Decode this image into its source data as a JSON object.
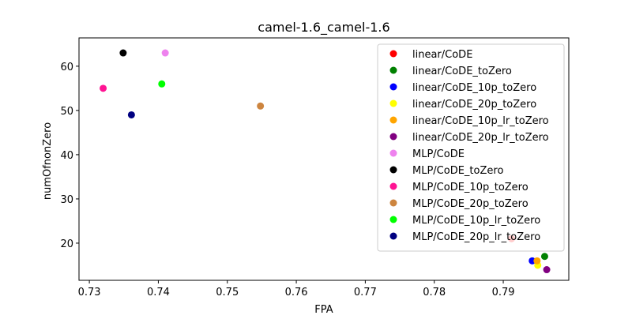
{
  "chart_data": {
    "type": "scatter",
    "title": "camel-1.6_camel-1.6",
    "xlabel": "FPA",
    "ylabel": "numOfnonZero",
    "xlim": [
      0.7285,
      0.7995
    ],
    "ylim": [
      11.6,
      66.4
    ],
    "xticks": [
      0.73,
      0.74,
      0.75,
      0.76,
      0.77,
      0.78,
      0.79
    ],
    "xtick_labels": [
      "0.73",
      "0.74",
      "0.75",
      "0.76",
      "0.77",
      "0.78",
      "0.79"
    ],
    "yticks": [
      20,
      30,
      40,
      50,
      60
    ],
    "ytick_labels": [
      "20",
      "30",
      "40",
      "50",
      "60"
    ],
    "legend_position": "upper-right",
    "grid": false,
    "series": [
      {
        "name": "linear/CoDE",
        "color": "#ff0000",
        "points": [
          {
            "x": 0.7912,
            "y": 21
          }
        ]
      },
      {
        "name": "linear/CoDE_toZero",
        "color": "#008000",
        "points": [
          {
            "x": 0.796,
            "y": 17
          }
        ]
      },
      {
        "name": "linear/CoDE_10p_toZero",
        "color": "#0000ff",
        "points": [
          {
            "x": 0.7942,
            "y": 16
          }
        ]
      },
      {
        "name": "linear/CoDE_20p_toZero",
        "color": "#ffff00",
        "points": [
          {
            "x": 0.795,
            "y": 15
          }
        ]
      },
      {
        "name": "linear/CoDE_10p_lr_toZero",
        "color": "#ffa500",
        "points": [
          {
            "x": 0.7949,
            "y": 16
          }
        ]
      },
      {
        "name": "linear/CoDE_20p_lr_toZero",
        "color": "#800080",
        "points": [
          {
            "x": 0.7963,
            "y": 14
          }
        ]
      },
      {
        "name": "MLP/CoDE",
        "color": "#ee82ee",
        "points": [
          {
            "x": 0.741,
            "y": 63
          }
        ]
      },
      {
        "name": "MLP/CoDE_toZero",
        "color": "#000000",
        "points": [
          {
            "x": 0.7349,
            "y": 63
          }
        ]
      },
      {
        "name": "MLP/CoDE_10p_toZero",
        "color": "#ff1493",
        "points": [
          {
            "x": 0.732,
            "y": 55
          }
        ]
      },
      {
        "name": "MLP/CoDE_20p_toZero",
        "color": "#cd853f",
        "points": [
          {
            "x": 0.7548,
            "y": 51
          }
        ]
      },
      {
        "name": "MLP/CoDE_10p_lr_toZero",
        "color": "#00ff00",
        "points": [
          {
            "x": 0.7405,
            "y": 56
          }
        ]
      },
      {
        "name": "MLP/CoDE_20p_lr_toZero",
        "color": "#000080",
        "points": [
          {
            "x": 0.7361,
            "y": 49
          }
        ]
      }
    ]
  }
}
